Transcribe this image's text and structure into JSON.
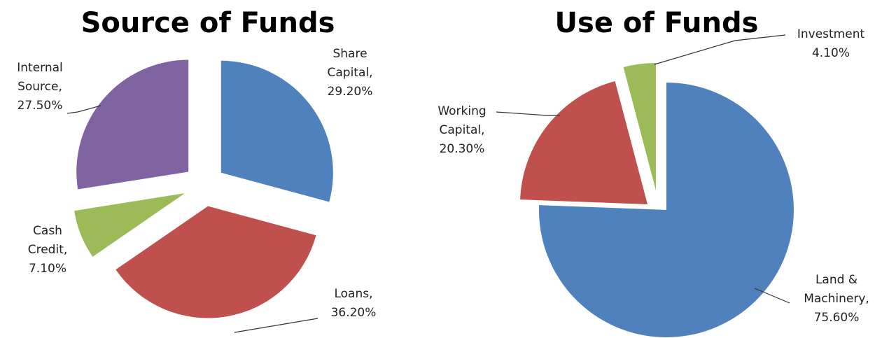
{
  "chart_data": [
    {
      "type": "pie",
      "title": "Source of Funds",
      "slices": [
        {
          "label": "Share Capital",
          "label_lines": [
            "Share",
            "Capital,",
            "29.20%"
          ],
          "value": 29.2,
          "display": "29.20%",
          "color": "#4F81BD"
        },
        {
          "label": "Loans",
          "label_lines": [
            "Loans,",
            "36.20%"
          ],
          "value": 36.2,
          "display": "36.20%",
          "color": "#C0504D"
        },
        {
          "label": "Cash Credit",
          "label_lines": [
            "Cash",
            "Credit,",
            "7.10%"
          ],
          "value": 7.1,
          "display": "7.10%",
          "color": "#9BBB59"
        },
        {
          "label": "Internal Source",
          "label_lines": [
            "Internal",
            "Source,",
            "27.50%"
          ],
          "value": 27.5,
          "display": "27.50%",
          "color": "#8064A2"
        }
      ]
    },
    {
      "type": "pie",
      "title": "Use of Funds",
      "slices": [
        {
          "label": "Land & Machinery",
          "label_lines": [
            "Land &",
            "Machinery,",
            "75.60%"
          ],
          "value": 75.6,
          "display": "75.60%",
          "color": "#4F81BD"
        },
        {
          "label": "Working Capital",
          "label_lines": [
            "Working",
            "Capital,",
            "20.30%"
          ],
          "value": 20.3,
          "display": "20.30%",
          "color": "#C0504D"
        },
        {
          "label": "Investment",
          "label_lines": [
            "Investment",
            "4.10%"
          ],
          "value": 4.1,
          "display": "4.10%",
          "color": "#9BBB59"
        }
      ]
    }
  ]
}
